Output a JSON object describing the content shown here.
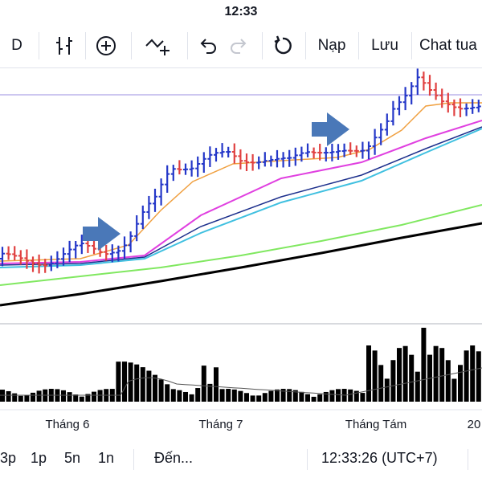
{
  "status_bar": {
    "time": "12:33"
  },
  "toolbar": {
    "interval": "D",
    "indicators_icon": "candles-settings-icon",
    "add_icon": "plus-circle-icon",
    "indicators2_icon": "chart-add-icon",
    "undo_icon": "undo-icon",
    "redo_icon": "redo-icon",
    "reload_icon": "reload-icon",
    "load_label": "Nạp",
    "save_label": "Lưu",
    "chat_label": "Chat tua"
  },
  "chart": {
    "x_axis_labels": [
      "Tháng 6",
      "Tháng 7",
      "Tháng Tám",
      "20"
    ],
    "colors": {
      "up_bar": "#2437c8",
      "down_bar": "#e04040",
      "ma_orange": "#f0a040",
      "ma_magenta": "#e040e0",
      "ma_navy": "#1c2f8c",
      "ma_cyan": "#40c0e0",
      "ma_green": "#80e860",
      "ma_black": "#000000",
      "arrow": "#4a78b8",
      "volume": "#000000",
      "hline": "#9b8fe0"
    },
    "annotations": [
      "arrow-right-icon",
      "arrow-right-icon"
    ]
  },
  "bottom_bar": {
    "ranges": [
      "3p",
      "1p",
      "5n",
      "1n"
    ],
    "goto_label": "Đến...",
    "clock": "12:33:26 (UTC+7)"
  }
}
